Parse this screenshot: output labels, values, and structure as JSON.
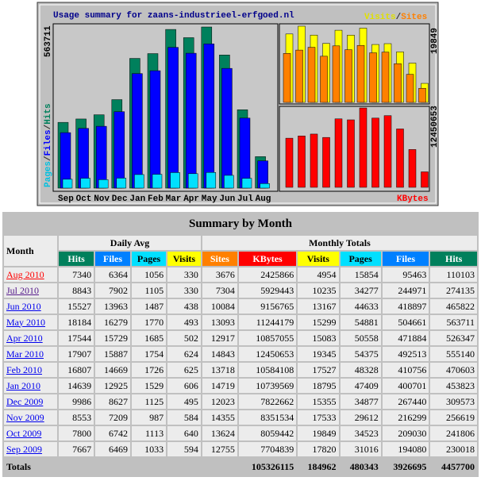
{
  "graph": {
    "title": "Usage summary for zaans-industrieel-erfgoed.nl",
    "months": [
      "Sep",
      "Oct",
      "Nov",
      "Dec",
      "Jan",
      "Feb",
      "Mar",
      "Apr",
      "May",
      "Jun",
      "Jul",
      "Aug"
    ],
    "left_max": 563711,
    "visits_max": 19849,
    "kbytes_max": 12450653,
    "left_legend": [
      "Pages",
      "Files",
      "Hits"
    ],
    "right_legend": [
      "Visits",
      "Sites"
    ],
    "kbytes_legend": "KBytes",
    "separator": "/"
  },
  "table": {
    "title": "Summary by Month",
    "month_header": "Month",
    "daily_header": "Daily Avg",
    "monthly_header": "Monthly Totals",
    "columns": [
      "Hits",
      "Files",
      "Pages",
      "Visits",
      "Sites",
      "KBytes",
      "Visits",
      "Pages",
      "Files",
      "Hits"
    ],
    "rows": [
      [
        "Aug 2010",
        7340,
        6364,
        1056,
        330,
        3676,
        2425866,
        4954,
        15854,
        95463,
        110103
      ],
      [
        "Jul 2010",
        8843,
        7902,
        1105,
        330,
        7304,
        5929443,
        10235,
        34277,
        244971,
        274135
      ],
      [
        "Jun 2010",
        15527,
        13963,
        1487,
        438,
        10084,
        9156765,
        13167,
        44633,
        418897,
        465822
      ],
      [
        "May 2010",
        18184,
        16279,
        1770,
        493,
        13093,
        11244179,
        15299,
        54881,
        504661,
        563711
      ],
      [
        "Apr 2010",
        17544,
        15729,
        1685,
        502,
        12917,
        10857055,
        15083,
        50558,
        471884,
        526347
      ],
      [
        "Mar 2010",
        17907,
        15887,
        1754,
        624,
        14843,
        12450653,
        19345,
        54375,
        492513,
        555140
      ],
      [
        "Feb 2010",
        16807,
        14669,
        1726,
        625,
        13718,
        10584108,
        17527,
        48328,
        410756,
        470603
      ],
      [
        "Jan 2010",
        14639,
        12925,
        1529,
        606,
        14719,
        10739569,
        18795,
        47409,
        400701,
        453823
      ],
      [
        "Dec 2009",
        9986,
        8627,
        1125,
        495,
        12023,
        7822662,
        15355,
        34877,
        267440,
        309573
      ],
      [
        "Nov 2009",
        8553,
        7209,
        987,
        584,
        14355,
        8351534,
        17533,
        29612,
        216299,
        256619
      ],
      [
        "Oct 2009",
        7800,
        6742,
        1113,
        640,
        13624,
        8059442,
        19849,
        34523,
        209030,
        241806
      ],
      [
        "Sep 2009",
        7667,
        6469,
        1033,
        594,
        12755,
        7704839,
        17820,
        31016,
        194080,
        230018
      ]
    ],
    "totals": {
      "label": "Totals",
      "values": [
        105326115,
        184962,
        480343,
        3926695,
        4457700
      ]
    }
  }
}
